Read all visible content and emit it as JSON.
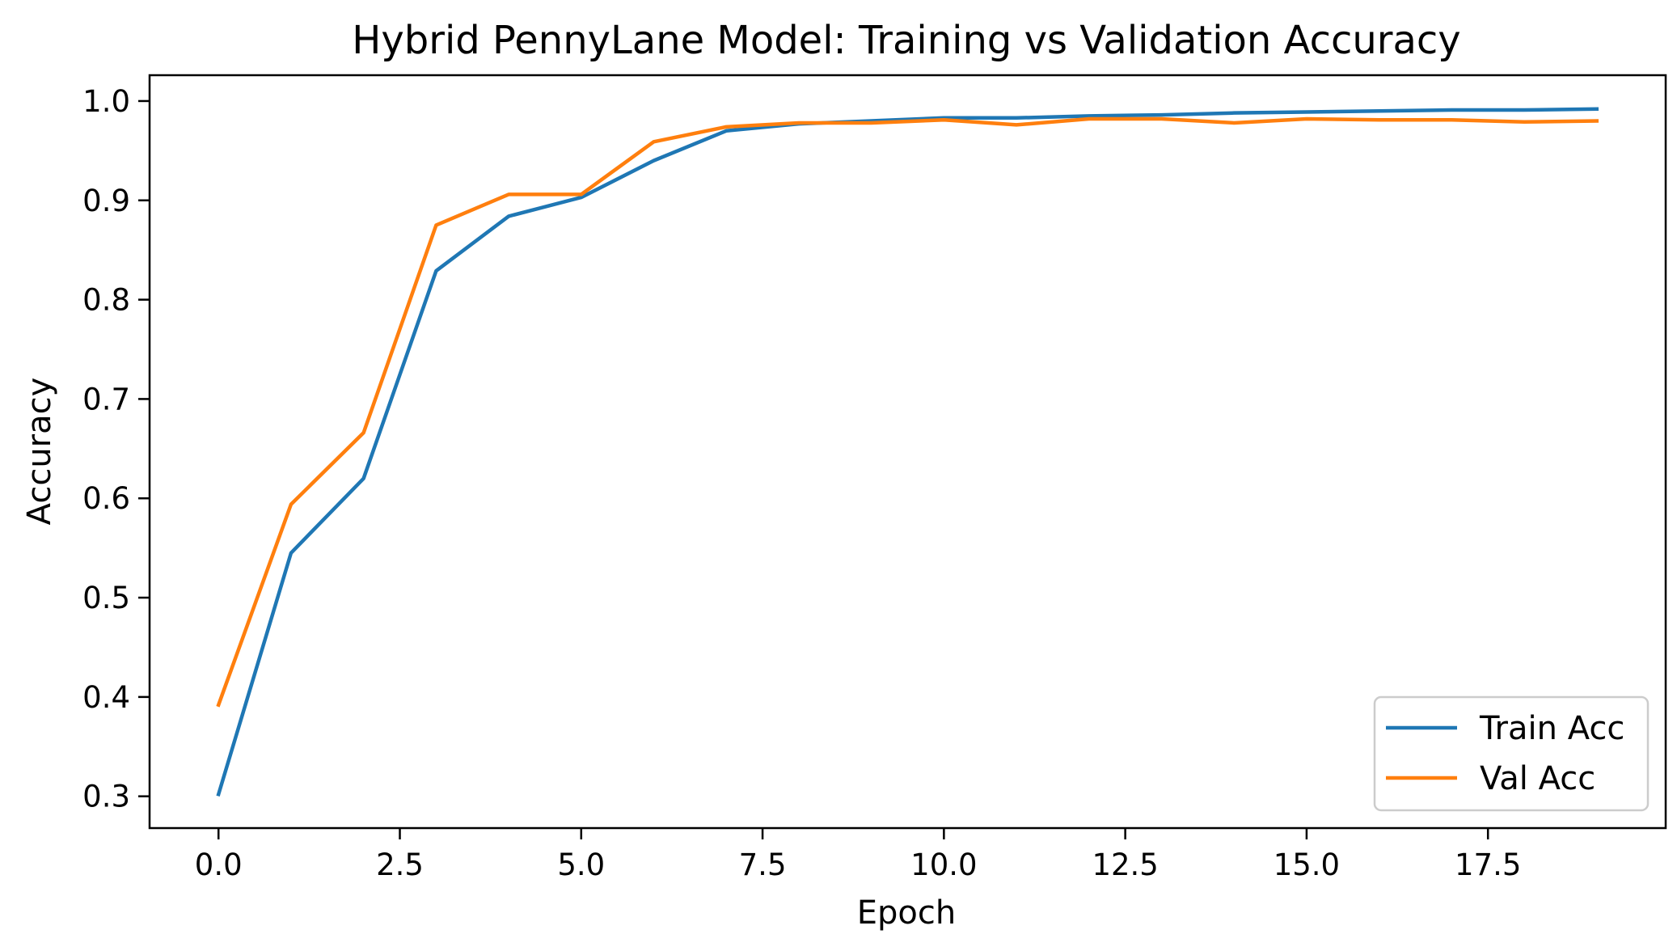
{
  "chart_data": {
    "type": "line",
    "title": "Hybrid PennyLane Model: Training vs Validation Accuracy",
    "xlabel": "Epoch",
    "ylabel": "Accuracy",
    "xlim": [
      -0.95,
      19.95
    ],
    "ylim": [
      0.268,
      1.026
    ],
    "xticks": [
      0.0,
      2.5,
      5.0,
      7.5,
      10.0,
      12.5,
      15.0,
      17.5
    ],
    "xtick_labels": [
      "0.0",
      "2.5",
      "5.0",
      "7.5",
      "10.0",
      "12.5",
      "15.0",
      "17.5"
    ],
    "yticks": [
      0.3,
      0.4,
      0.5,
      0.6,
      0.7,
      0.8,
      0.9,
      1.0
    ],
    "ytick_labels": [
      "0.3",
      "0.4",
      "0.5",
      "0.6",
      "0.7",
      "0.8",
      "0.9",
      "1.0"
    ],
    "grid": false,
    "legend_position": "bottom-right",
    "x": [
      0,
      1,
      2,
      3,
      4,
      5,
      6,
      7,
      8,
      9,
      10,
      11,
      12,
      13,
      14,
      15,
      16,
      17,
      18,
      19
    ],
    "series": [
      {
        "name": "Train Acc",
        "color": "#1f77b4",
        "values": [
          0.302,
          0.545,
          0.62,
          0.829,
          0.884,
          0.903,
          0.94,
          0.97,
          0.977,
          0.98,
          0.983,
          0.983,
          0.985,
          0.986,
          0.988,
          0.989,
          0.99,
          0.991,
          0.991,
          0.992
        ]
      },
      {
        "name": "Val Acc",
        "color": "#ff7f0e",
        "values": [
          0.392,
          0.594,
          0.666,
          0.875,
          0.906,
          0.906,
          0.959,
          0.974,
          0.978,
          0.978,
          0.981,
          0.976,
          0.982,
          0.982,
          0.978,
          0.982,
          0.981,
          0.981,
          0.979,
          0.98
        ]
      }
    ]
  }
}
